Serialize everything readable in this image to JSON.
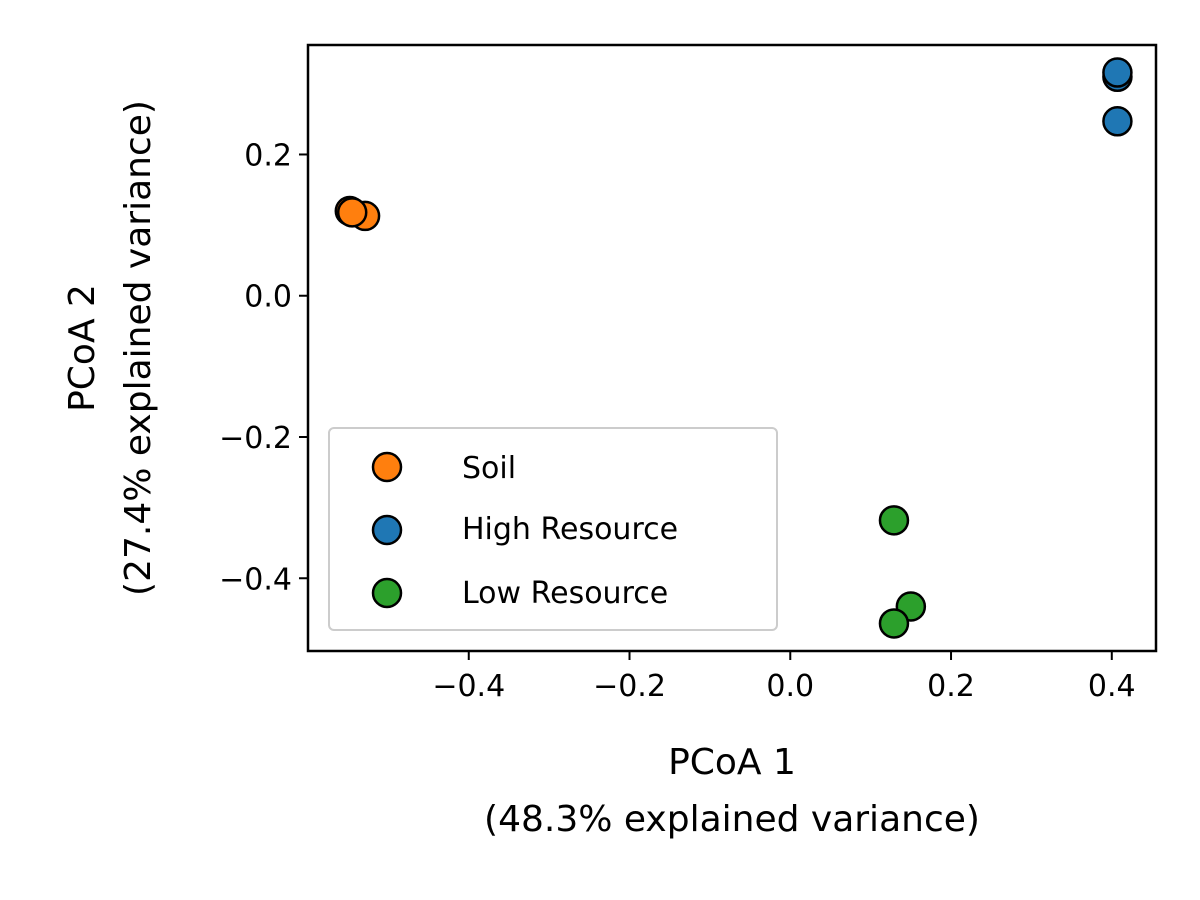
{
  "chart_data": {
    "type": "scatter",
    "xlabel": [
      "PCoA 1",
      "(48.3% explained variance)"
    ],
    "ylabel": [
      "PCoA 2",
      "(27.4% explained variance)"
    ],
    "xlim": [
      -0.6,
      0.455
    ],
    "ylim": [
      -0.503,
      0.355
    ],
    "xticks": [
      -0.4,
      -0.2,
      0.0,
      0.2,
      0.4
    ],
    "yticks": [
      -0.4,
      -0.2,
      0.0,
      0.2
    ],
    "xtick_labels": [
      "−0.4",
      "−0.2",
      "0.0",
      "0.2",
      "0.4"
    ],
    "ytick_labels": [
      "−0.4",
      "−0.2",
      "0.0",
      "0.2"
    ],
    "grid": false,
    "legend_position": "lower-left",
    "series": [
      {
        "name": "Soil",
        "color": "#ff7f0e",
        "points": [
          {
            "x": -0.529,
            "y": 0.113
          },
          {
            "x": -0.548,
            "y": 0.12
          },
          {
            "x": -0.545,
            "y": 0.118
          }
        ]
      },
      {
        "name": "High Resource",
        "color": "#1f77b4",
        "points": [
          {
            "x": 0.407,
            "y": 0.31
          },
          {
            "x": 0.407,
            "y": 0.316
          },
          {
            "x": 0.407,
            "y": 0.247
          }
        ]
      },
      {
        "name": "Low Resource",
        "color": "#2ca02c",
        "points": [
          {
            "x": 0.129,
            "y": -0.318
          },
          {
            "x": 0.15,
            "y": -0.44
          },
          {
            "x": 0.129,
            "y": -0.464
          }
        ]
      }
    ]
  }
}
